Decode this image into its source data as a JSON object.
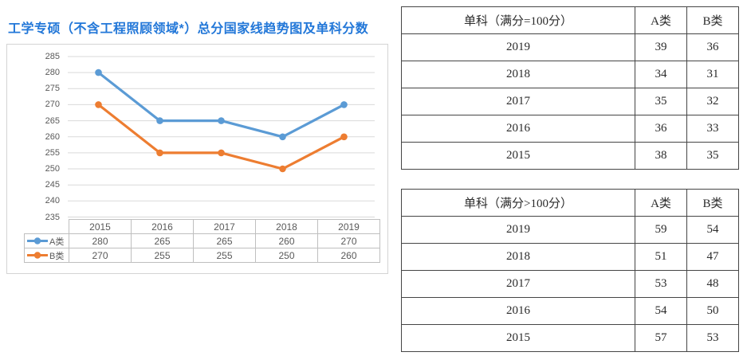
{
  "page_title": "工学专硕（不含工程照顾领域*）总分国家线趋势图及单科分数",
  "colors": {
    "title_blue": "#2277d8",
    "series_a_blue": "#5B9BD5",
    "series_b_orange": "#ED7D31",
    "gridline_gray": "#d9d9d9",
    "chart_border_gray": "#d4d4d4",
    "chart_text_gray": "#595959",
    "chart_table_border": "#bfbfbf",
    "score_table_border": "#454545"
  },
  "chart_data": {
    "type": "line",
    "title": "工学专硕（不含工程照顾领域*）总分国家线趋势图及单科分数",
    "categories": [
      "2015",
      "2016",
      "2017",
      "2018",
      "2019"
    ],
    "series": [
      {
        "name": "A类",
        "color": "#5B9BD5",
        "values": [
          280,
          265,
          265,
          260,
          270
        ]
      },
      {
        "name": "B类",
        "color": "#ED7D31",
        "values": [
          270,
          255,
          255,
          250,
          260
        ]
      }
    ],
    "ylim": [
      235,
      285
    ],
    "ytick_step": 5,
    "grid": true,
    "legend_position": "table-left",
    "marker": "circle"
  },
  "right_tables": [
    {
      "header": [
        "单科（满分=100分）",
        "A类",
        "B类"
      ],
      "rows": [
        [
          "2019",
          "39",
          "36"
        ],
        [
          "2018",
          "34",
          "31"
        ],
        [
          "2017",
          "35",
          "32"
        ],
        [
          "2016",
          "36",
          "33"
        ],
        [
          "2015",
          "38",
          "35"
        ]
      ]
    },
    {
      "header": [
        "单科（满分>100分）",
        "A类",
        "B类"
      ],
      "rows": [
        [
          "2019",
          "59",
          "54"
        ],
        [
          "2018",
          "51",
          "47"
        ],
        [
          "2017",
          "53",
          "48"
        ],
        [
          "2016",
          "54",
          "50"
        ],
        [
          "2015",
          "57",
          "53"
        ]
      ]
    }
  ]
}
